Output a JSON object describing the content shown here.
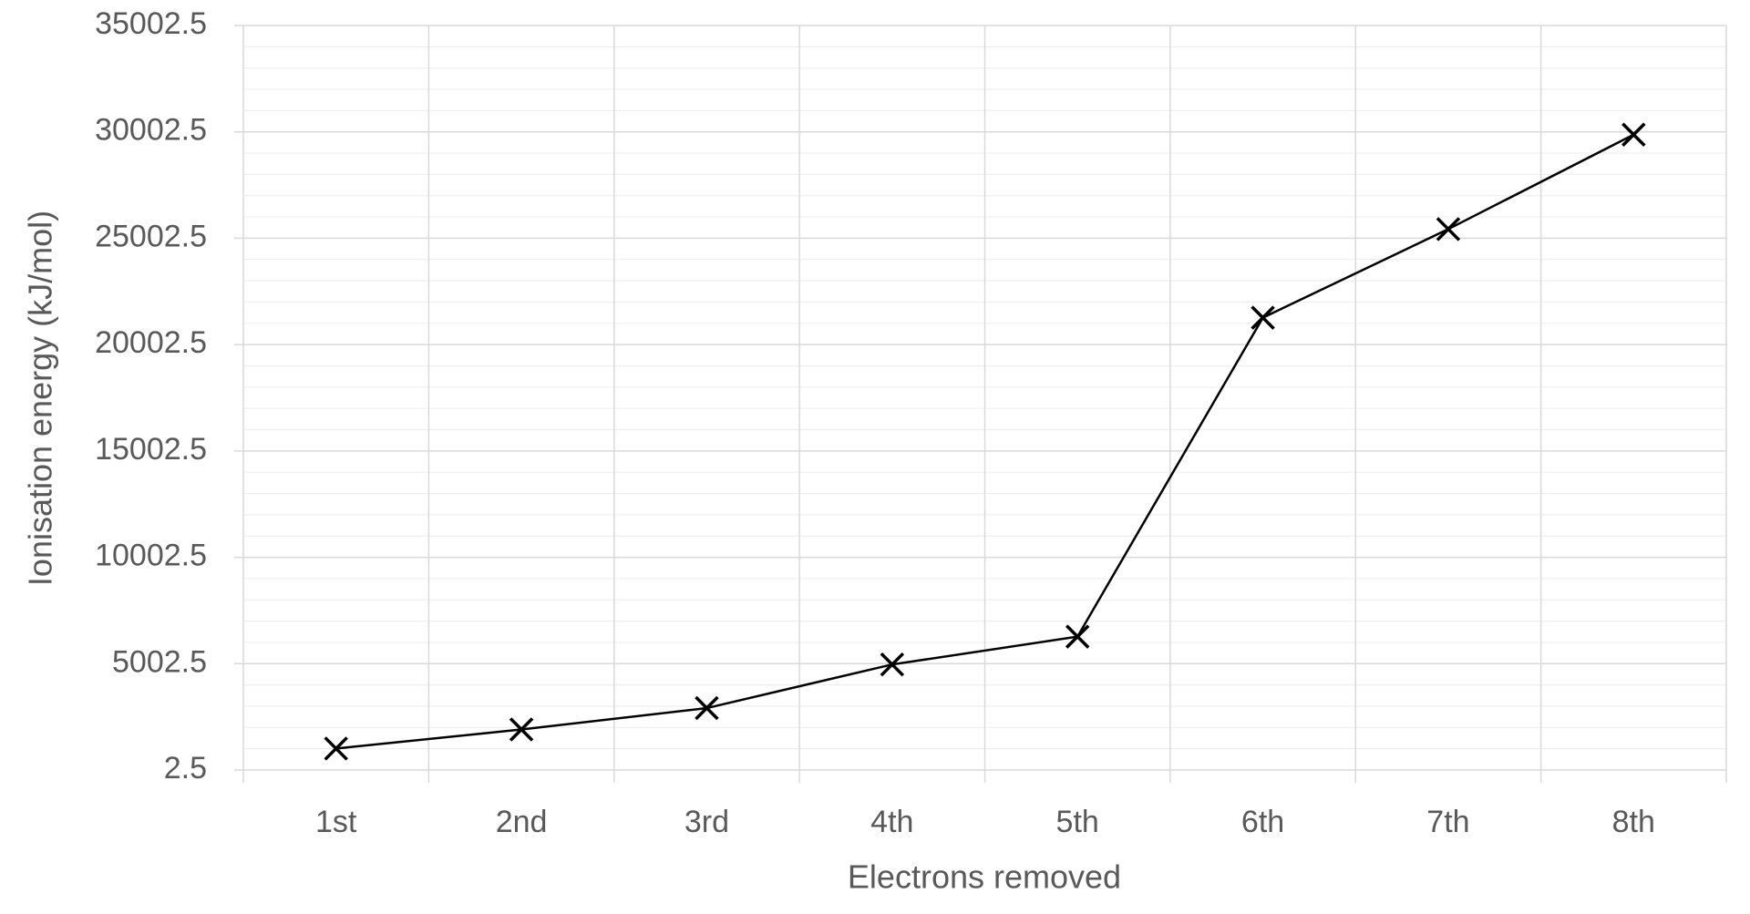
{
  "chart_data": {
    "type": "line",
    "x_label": "Electrons removed",
    "y_label": "Ionisation energy (kJ/mol)",
    "categories": [
      "1st",
      "2nd",
      "3rd",
      "4th",
      "5th",
      "6th",
      "7th",
      "8th"
    ],
    "values": [
      1012,
      1907,
      2914,
      4964,
      6274,
      21267,
      25431,
      29872
    ],
    "color": "#000000",
    "marker": "x",
    "ylim": [
      2.5,
      35002.5
    ],
    "yticks": [
      2.5,
      5002.5,
      10002.5,
      15002.5,
      20002.5,
      25002.5,
      30002.5,
      35002.5
    ],
    "grid": true,
    "minor_grid": true
  }
}
